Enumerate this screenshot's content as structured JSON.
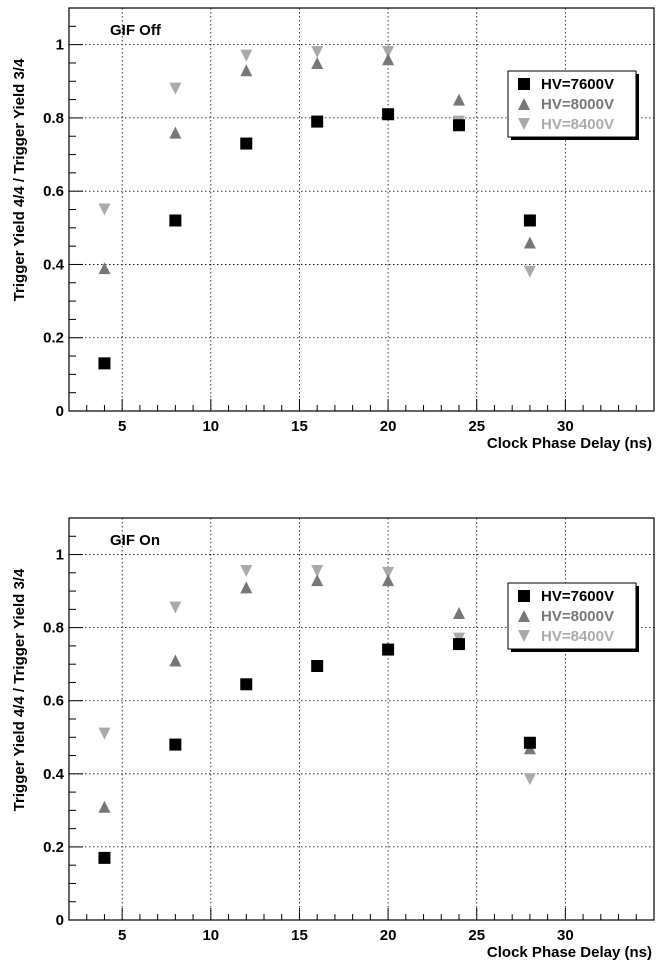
{
  "chart_data": [
    {
      "type": "scatter",
      "title": "GIF Off",
      "xlabel": "Clock Phase Delay (ns)",
      "ylabel": "Trigger Yield 4/4 / Trigger Yield 3/4",
      "xlim": [
        2,
        35
      ],
      "ylim": [
        0,
        1.1
      ],
      "xticks": [
        5,
        10,
        15,
        20,
        25,
        30
      ],
      "yticks": [
        0,
        0.2,
        0.4,
        0.6,
        0.8,
        1
      ],
      "grid": true,
      "legend_position": "top-right",
      "series": [
        {
          "name": "HV=7600V",
          "marker": "square",
          "color": "#000000",
          "x": [
            4,
            8,
            12,
            16,
            20,
            24,
            28
          ],
          "y": [
            0.13,
            0.52,
            0.73,
            0.79,
            0.81,
            0.78,
            0.52
          ]
        },
        {
          "name": "HV=8000V",
          "marker": "triangle-up",
          "color": "#777777",
          "x": [
            4,
            8,
            12,
            16,
            20,
            24,
            28
          ],
          "y": [
            0.39,
            0.76,
            0.93,
            0.95,
            0.96,
            0.85,
            0.46
          ]
        },
        {
          "name": "HV=8400V",
          "marker": "triangle-down",
          "color": "#aaaaaa",
          "x": [
            4,
            8,
            12,
            16,
            20,
            24,
            28
          ],
          "y": [
            0.55,
            0.88,
            0.97,
            0.98,
            0.98,
            0.79,
            0.38
          ]
        }
      ]
    },
    {
      "type": "scatter",
      "title": "GIF On",
      "xlabel": "Clock Phase Delay (ns)",
      "ylabel": "Trigger Yield 4/4 / Trigger Yield 3/4",
      "xlim": [
        2,
        35
      ],
      "ylim": [
        0,
        1.1
      ],
      "xticks": [
        5,
        10,
        15,
        20,
        25,
        30
      ],
      "yticks": [
        0,
        0.2,
        0.4,
        0.6,
        0.8,
        1
      ],
      "grid": true,
      "legend_position": "top-right",
      "series": [
        {
          "name": "HV=7600V",
          "marker": "square",
          "color": "#000000",
          "x": [
            4,
            8,
            12,
            16,
            20,
            24,
            28
          ],
          "y": [
            0.17,
            0.48,
            0.645,
            0.695,
            0.74,
            0.755,
            0.485
          ]
        },
        {
          "name": "HV=8000V",
          "marker": "triangle-up",
          "color": "#777777",
          "x": [
            4,
            8,
            12,
            16,
            20,
            24,
            28
          ],
          "y": [
            0.31,
            0.71,
            0.91,
            0.93,
            0.93,
            0.84,
            0.47
          ]
        },
        {
          "name": "HV=8400V",
          "marker": "triangle-down",
          "color": "#aaaaaa",
          "x": [
            4,
            8,
            12,
            16,
            20,
            24,
            28
          ],
          "y": [
            0.51,
            0.855,
            0.955,
            0.955,
            0.95,
            0.77,
            0.385
          ]
        }
      ]
    }
  ]
}
